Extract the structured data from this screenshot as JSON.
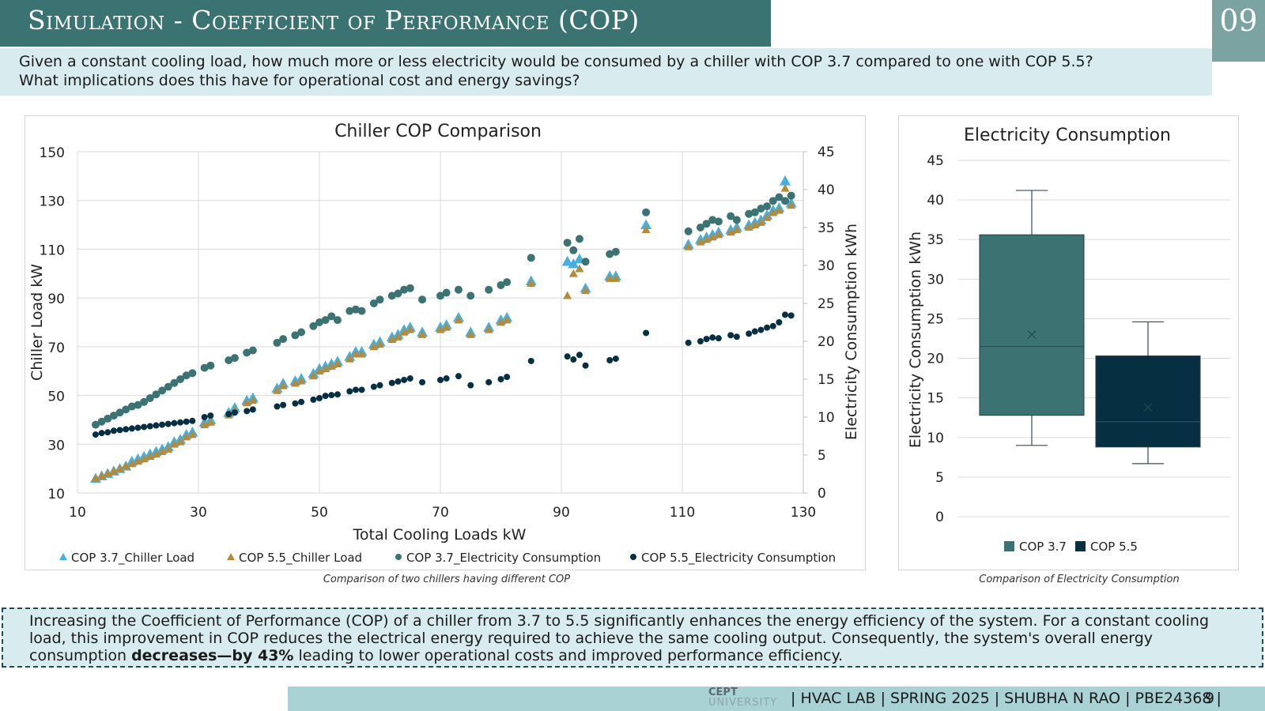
{
  "slide": {
    "title": "Simulation - Coefficient of Performance (COP)",
    "slide_number": "09",
    "question_line1": "Given a constant cooling load, how much more or less electricity would be consumed by a chiller with COP 3.7 compared to one with COP 5.5?",
    "question_line2": "What implications does this have for operational cost and energy savings?",
    "summary_before": "Increasing the Coefficient of Performance (COP) of a chiller from 3.7 to 5.5 significantly enhances the energy efficiency of the system. For a constant cooling load, this improvement in COP reduces the electrical energy required to achieve the same cooling output. Consequently, the system's overall energy consumption ",
    "summary_bold": "decreases—by 43%",
    "summary_after": " leading to lower operational costs and improved performance efficiency.",
    "footer_logo_top": "CEPT",
    "footer_logo_bottom": "UNIVERSITY",
    "footer_text": "| HVAC LAB | SPRING 2025 | SHUBHA N RAO | PBE24368 |",
    "footer_page": "9",
    "caption_left": "Comparison of  two chillers having different COP",
    "caption_right": "Comparison of  Electricity Consumption"
  },
  "colors": {
    "teal_dark": "#3b7372",
    "navy": "#062f42",
    "light_blue": "#45b0e0",
    "gold": "#b58a3a",
    "question_bg": "#d8ecef",
    "footer_bg": "#a9d2d5"
  },
  "chart_data": [
    {
      "type": "scatter",
      "title": "Chiller COP Comparison",
      "xlabel": "Total Cooling Loads kW",
      "ylabel": "Chiller Load kW",
      "y2label": "Electricity Consumption kWh",
      "xlim": [
        10,
        130
      ],
      "ylim": [
        10,
        150
      ],
      "y2lim": [
        0,
        45
      ],
      "xticks": [
        10,
        30,
        50,
        70,
        90,
        110,
        130
      ],
      "yticks": [
        10,
        30,
        50,
        70,
        90,
        110,
        130,
        150
      ],
      "y2ticks": [
        0,
        5,
        10,
        15,
        20,
        25,
        30,
        35,
        40,
        45
      ],
      "grid": true,
      "legend": "bottom",
      "x": [
        13,
        14,
        15,
        16,
        17,
        18,
        19,
        20,
        21,
        22,
        23,
        24,
        25,
        26,
        27,
        28,
        29,
        31,
        32,
        35,
        36,
        38,
        39,
        43,
        44,
        46,
        47,
        49,
        50,
        51,
        52,
        53,
        55,
        56,
        57,
        59,
        60,
        62,
        63,
        64,
        65,
        67,
        70,
        71,
        73,
        75,
        78,
        80,
        81,
        85,
        91,
        92,
        93,
        94,
        98,
        99,
        104,
        111,
        113,
        114,
        115,
        116,
        118,
        119,
        121,
        122,
        123,
        124,
        125,
        126,
        127,
        128
      ],
      "series": [
        {
          "name": "COP 3.7_Chiller Load",
          "axis": "y",
          "marker": "triangle",
          "values": [
            16,
            17,
            18,
            19,
            20,
            21,
            23,
            24,
            25,
            26,
            27,
            28,
            29,
            31,
            32,
            34,
            35,
            39,
            40,
            43,
            45,
            48,
            49,
            53,
            55,
            56,
            57,
            59,
            61,
            62,
            63,
            64,
            66,
            68,
            68,
            71,
            72,
            74,
            75,
            77,
            78,
            76,
            78,
            79,
            82,
            76,
            78,
            81,
            82,
            97,
            105,
            104,
            106,
            94,
            99,
            99,
            120,
            112,
            114,
            115,
            116,
            117,
            118,
            119,
            120,
            121,
            122,
            124,
            126,
            127,
            138,
            129
          ]
        },
        {
          "name": "COP 5.5_Chiller Load",
          "axis": "y",
          "marker": "triangle",
          "values": [
            16,
            17,
            18,
            19,
            20,
            21,
            22,
            23,
            24,
            25,
            26,
            27,
            28,
            30,
            31,
            33,
            34,
            38,
            39,
            42,
            44,
            47,
            48,
            52,
            54,
            55,
            56,
            58,
            60,
            61,
            62,
            63,
            65,
            67,
            67,
            70,
            71,
            73,
            74,
            76,
            77,
            75,
            77,
            78,
            81,
            75,
            77,
            80,
            81,
            96,
            91,
            100,
            102,
            93,
            98,
            98,
            118,
            111,
            113,
            114,
            115,
            116,
            117,
            118,
            119,
            120,
            121,
            123,
            125,
            126,
            135,
            128
          ]
        },
        {
          "name": "COP 3.7_Electricity Consumption",
          "axis": "y2",
          "marker": "circle",
          "values": [
            9.0,
            9.4,
            9.8,
            10.2,
            10.6,
            11.0,
            11.4,
            11.6,
            12.0,
            12.5,
            13.0,
            13.5,
            14.0,
            14.5,
            15.0,
            15.5,
            15.8,
            16.5,
            16.8,
            17.5,
            17.8,
            18.5,
            18.8,
            19.8,
            20.3,
            20.8,
            21.2,
            22.0,
            22.5,
            22.8,
            23.3,
            22.8,
            24.0,
            24.2,
            24.0,
            25.0,
            25.5,
            26.0,
            26.3,
            26.8,
            27.0,
            25.5,
            26.0,
            26.4,
            26.8,
            26.0,
            26.8,
            27.4,
            27.8,
            31.0,
            33.0,
            32.0,
            33.5,
            30.5,
            31.5,
            31.8,
            37.0,
            34.5,
            35.0,
            35.5,
            36.0,
            35.8,
            36.5,
            36.0,
            36.8,
            37.0,
            37.5,
            37.8,
            38.5,
            39.0,
            38.5,
            39.2
          ]
        },
        {
          "name": "COP 5.5_Electricity Consumption",
          "axis": "y2",
          "marker": "circle",
          "values": [
            7.7,
            7.9,
            8.0,
            8.2,
            8.3,
            8.4,
            8.5,
            8.6,
            8.7,
            8.8,
            8.9,
            9.0,
            9.1,
            9.2,
            9.3,
            9.4,
            9.5,
            10.0,
            10.2,
            10.4,
            10.6,
            10.8,
            11.0,
            11.4,
            11.6,
            11.8,
            12.0,
            12.3,
            12.5,
            12.8,
            12.9,
            13.0,
            13.4,
            13.6,
            13.6,
            14.0,
            14.2,
            14.5,
            14.7,
            14.9,
            15.1,
            14.6,
            14.9,
            15.1,
            15.4,
            14.2,
            14.6,
            15.0,
            15.3,
            17.4,
            18.0,
            17.6,
            18.2,
            16.8,
            17.5,
            17.7,
            21.1,
            19.8,
            20.0,
            20.3,
            20.5,
            20.4,
            20.8,
            20.6,
            21.0,
            21.3,
            21.5,
            21.8,
            22.0,
            22.5,
            23.5,
            23.4
          ]
        }
      ]
    },
    {
      "type": "box",
      "title": "Electricity Consumption",
      "ylabel": "Electricity Consumption kWh",
      "ylim": [
        0,
        45
      ],
      "yticks": [
        0,
        5,
        10,
        15,
        20,
        25,
        30,
        35,
        40,
        45
      ],
      "grid": true,
      "legend": "bottom",
      "series": [
        {
          "name": "COP 3.7",
          "min": 9.0,
          "q1": 12.8,
          "median": 21.5,
          "q3": 35.6,
          "max": 41.2,
          "mean": 23.0
        },
        {
          "name": "COP 5.5",
          "min": 6.7,
          "q1": 8.8,
          "median": 12.0,
          "q3": 20.3,
          "max": 24.6,
          "mean": 13.8
        }
      ]
    }
  ]
}
